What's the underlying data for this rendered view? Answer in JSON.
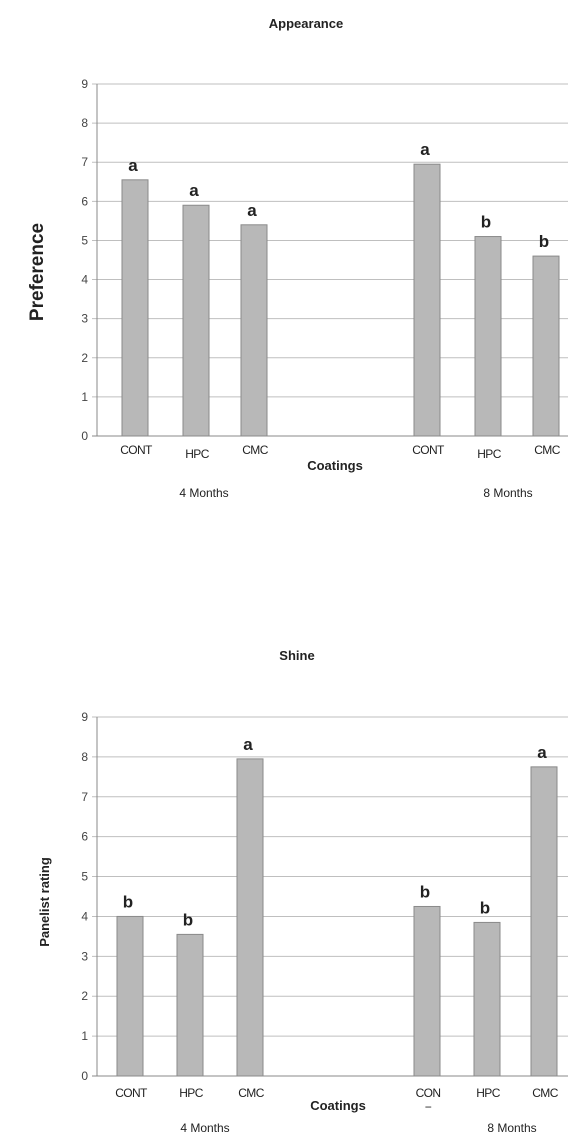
{
  "chart_data": [
    {
      "type": "bar",
      "title": "Appearance",
      "xlabel": "Coatings",
      "ylabel": "Preference",
      "ylim": [
        0,
        9
      ],
      "yticks": [
        "0",
        "1",
        "2",
        "3",
        "4",
        "5",
        "6",
        "7",
        "8",
        "9"
      ],
      "grid": true,
      "groups": [
        {
          "label": "4 Months",
          "categories": [
            "CONT",
            "HPC",
            "CMC"
          ],
          "values": [
            6.55,
            5.9,
            5.4
          ],
          "letters": [
            "a",
            "a",
            "a"
          ]
        },
        {
          "label": "8 Months",
          "categories": [
            "CONT",
            "HPC",
            "CMC"
          ],
          "values": [
            6.95,
            5.1,
            4.6
          ],
          "letters": [
            "a",
            "b",
            "b"
          ]
        }
      ]
    },
    {
      "type": "bar",
      "title": "Shine",
      "xlabel": "Coatings",
      "ylabel": "Panelist rating",
      "ylim": [
        0,
        9
      ],
      "yticks": [
        "0",
        "1",
        "2",
        "3",
        "4",
        "5",
        "6",
        "7",
        "8",
        "9"
      ],
      "grid": true,
      "groups": [
        {
          "label": "4 Months",
          "categories": [
            "CONT",
            "HPC",
            "CMC"
          ],
          "values": [
            4.0,
            3.55,
            7.95
          ],
          "letters": [
            "b",
            "b",
            "a"
          ]
        },
        {
          "label": "8 Months",
          "categories": [
            "CON\n−",
            "HPC",
            "CMC"
          ],
          "values": [
            4.25,
            3.85,
            7.75
          ],
          "letters": [
            "b",
            "b",
            "a"
          ]
        }
      ]
    }
  ]
}
